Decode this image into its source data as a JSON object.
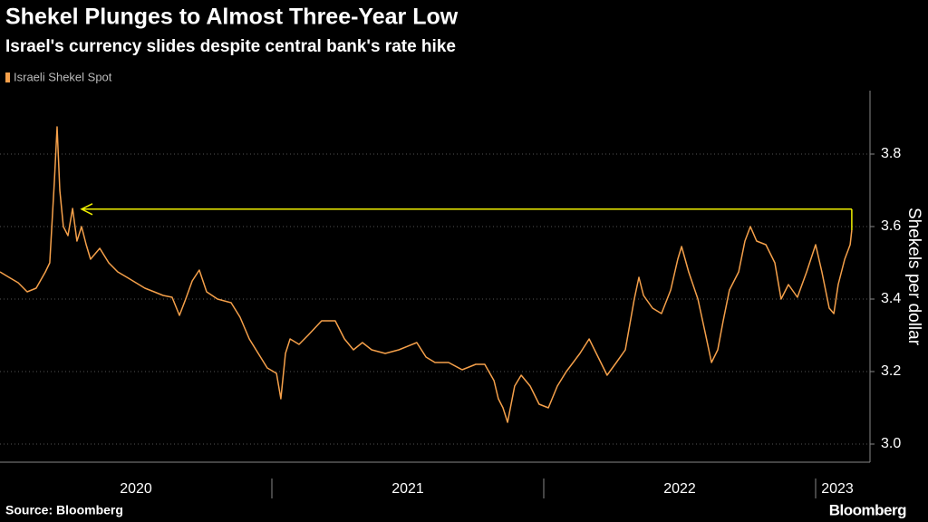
{
  "chart_data": {
    "type": "line",
    "title": "Shekel Plunges to Almost Three-Year Low",
    "subtitle": "Israel's currency slides despite central bank's rate hike",
    "y_label": "Shekels per dollar",
    "source": "Source: Bloomberg",
    "brand": "Bloomberg",
    "xlim": [
      2020,
      2023.2
    ],
    "ylim": [
      2.95,
      3.975
    ],
    "yticks": [
      {
        "value": 3,
        "label": "3.0"
      },
      3.2,
      3.4,
      3.6,
      3.8
    ],
    "xticks": [
      {
        "value": 2020.5,
        "label": "2020"
      },
      {
        "value": 2021.5,
        "label": "2021"
      },
      {
        "value": 2022.5,
        "label": "2022"
      },
      {
        "value": 2023.08,
        "label": "2023"
      }
    ],
    "xseparators": [
      2021,
      2022,
      2023
    ],
    "grid": true,
    "arrow": {
      "x": [
        2023.133,
        2020.3
      ],
      "y": 3.648,
      "color": "#f0f000"
    },
    "x": [
      2020.0,
      2020.033,
      2020.067,
      2020.1,
      2020.133,
      2020.167,
      2020.183,
      2020.2,
      2020.21,
      2020.22,
      2020.233,
      2020.25,
      2020.267,
      2020.283,
      2020.3,
      2020.317,
      2020.333,
      2020.367,
      2020.4,
      2020.433,
      2020.467,
      2020.5,
      2020.533,
      2020.567,
      2020.6,
      2020.633,
      2020.66,
      2020.683,
      2020.707,
      2020.733,
      2020.76,
      2020.8,
      2020.85,
      2020.883,
      2020.917,
      2020.95,
      2020.983,
      2021.017,
      2021.033,
      2021.05,
      2021.067,
      2021.1,
      2021.133,
      2021.183,
      2021.233,
      2021.267,
      2021.3,
      2021.333,
      2021.367,
      2021.417,
      2021.467,
      2021.533,
      2021.567,
      2021.6,
      2021.65,
      2021.7,
      2021.75,
      2021.783,
      2021.817,
      2021.833,
      2021.85,
      2021.867,
      2021.893,
      2021.917,
      2021.95,
      2021.983,
      2022.017,
      2022.05,
      2022.083,
      2022.133,
      2022.167,
      2022.2,
      2022.233,
      2022.267,
      2022.3,
      2022.333,
      2022.35,
      2022.367,
      2022.4,
      2022.433,
      2022.467,
      2022.493,
      2022.507,
      2022.533,
      2022.567,
      2022.593,
      2022.617,
      2022.64,
      2022.66,
      2022.683,
      2022.717,
      2022.74,
      2022.76,
      2022.783,
      2022.817,
      2022.85,
      2022.873,
      2022.9,
      2022.933,
      2022.967,
      2023.0,
      2023.023,
      2023.05,
      2023.067,
      2023.083,
      2023.107,
      2023.127,
      2023.133
    ],
    "series": [
      {
        "name": "Israeli Shekel Spot",
        "color": "#f5a04a",
        "values": [
          3.475,
          3.46,
          3.445,
          3.42,
          3.43,
          3.475,
          3.5,
          3.725,
          3.875,
          3.7,
          3.6,
          3.575,
          3.65,
          3.56,
          3.6,
          3.55,
          3.51,
          3.54,
          3.5,
          3.475,
          3.46,
          3.445,
          3.43,
          3.42,
          3.41,
          3.405,
          3.355,
          3.4,
          3.45,
          3.48,
          3.42,
          3.4,
          3.39,
          3.35,
          3.29,
          3.25,
          3.21,
          3.195,
          3.125,
          3.25,
          3.29,
          3.275,
          3.3,
          3.34,
          3.34,
          3.29,
          3.26,
          3.28,
          3.26,
          3.25,
          3.26,
          3.28,
          3.24,
          3.225,
          3.225,
          3.205,
          3.22,
          3.22,
          3.175,
          3.125,
          3.1,
          3.06,
          3.16,
          3.19,
          3.16,
          3.11,
          3.1,
          3.16,
          3.2,
          3.25,
          3.29,
          3.24,
          3.19,
          3.225,
          3.26,
          3.4,
          3.46,
          3.41,
          3.375,
          3.36,
          3.425,
          3.51,
          3.545,
          3.475,
          3.4,
          3.31,
          3.225,
          3.26,
          3.34,
          3.425,
          3.475,
          3.56,
          3.6,
          3.56,
          3.55,
          3.5,
          3.4,
          3.44,
          3.405,
          3.475,
          3.55,
          3.475,
          3.375,
          3.36,
          3.44,
          3.51,
          3.55,
          3.59
        ]
      }
    ]
  }
}
